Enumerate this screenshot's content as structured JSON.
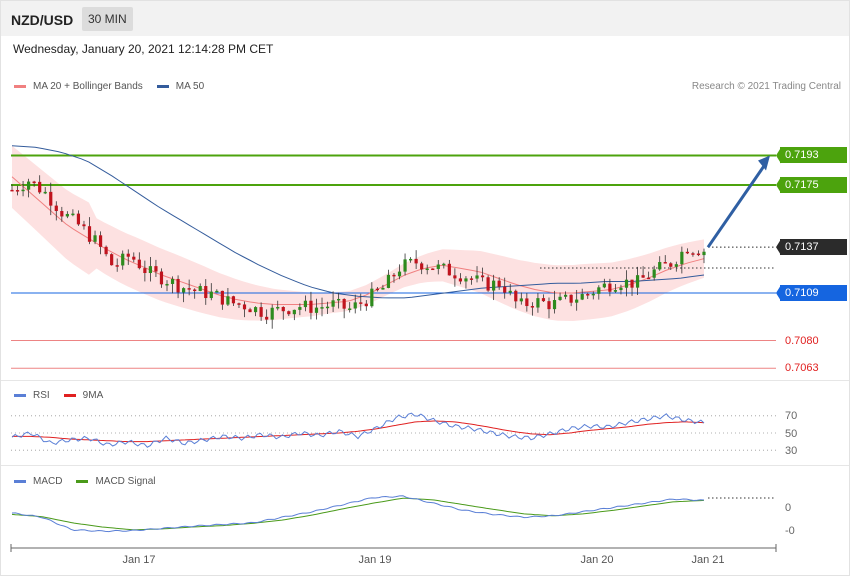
{
  "header": {
    "symbol": "NZD/USD",
    "timeframe": "30 MIN"
  },
  "timestamp": "Wednesday, January 20, 2021 12:14:28 PM CET",
  "credit": "Research © 2021 Trading Central",
  "legends": {
    "price": [
      {
        "label": "MA 20 + Bollinger Bands",
        "color": "#f08080"
      },
      {
        "label": "MA 50",
        "color": "#345c9c"
      }
    ],
    "rsi": [
      {
        "label": "RSI",
        "color": "#5a7fd6"
      },
      {
        "label": "9MA",
        "color": "#e02020"
      }
    ],
    "macd": [
      {
        "label": "MACD",
        "color": "#5a7fd6"
      },
      {
        "label": "MACD Signal",
        "color": "#4a9a1a"
      }
    ]
  },
  "colors": {
    "up_candle": "#2e8b1e",
    "down_candle": "#c0141e",
    "resistance": "#4ca30d",
    "support_blue": "#1565e0",
    "support_red": "#e02020",
    "current": "#2b2b2b"
  },
  "chart_data": [
    {
      "type": "candlestick",
      "panel": "price",
      "x_labels": [
        "Jan 17",
        "Jan 19",
        "Jan 20",
        "Jan 21"
      ],
      "levels": [
        {
          "label": "0.7193",
          "value": 0.7193,
          "kind": "resistance"
        },
        {
          "label": "0.7175",
          "value": 0.7175,
          "kind": "resistance"
        },
        {
          "label": "0.7137",
          "value": 0.7137,
          "kind": "current"
        },
        {
          "label": "0.7109",
          "value": 0.7109,
          "kind": "support"
        },
        {
          "label": "0.7080",
          "value": 0.708,
          "kind": "support"
        },
        {
          "label": "0.7063",
          "value": 0.7063,
          "kind": "support"
        }
      ],
      "price_path": [
        0.7172,
        0.7178,
        0.717,
        0.7158,
        0.715,
        0.714,
        0.7125,
        0.7132,
        0.7122,
        0.7118,
        0.7113,
        0.711,
        0.7108,
        0.7103,
        0.7101,
        0.7097,
        0.7099,
        0.7101,
        0.71,
        0.7102,
        0.7099,
        0.7105,
        0.7112,
        0.7125,
        0.7128,
        0.7125,
        0.7122,
        0.7119,
        0.7114,
        0.7115,
        0.7101,
        0.7104,
        0.7102,
        0.7105,
        0.7108,
        0.7113,
        0.7116,
        0.7115,
        0.7122,
        0.7127,
        0.7137,
        0.7135
      ],
      "ma20": [
        0.718,
        0.717,
        0.716,
        0.715,
        0.7143,
        0.7136,
        0.713,
        0.7125,
        0.712,
        0.7116,
        0.7112,
        0.7108,
        0.7105,
        0.7103,
        0.7102,
        0.7102,
        0.7102,
        0.7103,
        0.7104,
        0.7108,
        0.7114,
        0.712,
        0.7124,
        0.7126,
        0.7124,
        0.7122,
        0.7118,
        0.7114,
        0.7111,
        0.7109,
        0.7109,
        0.711,
        0.7111,
        0.7114,
        0.7118,
        0.7123,
        0.7127,
        0.713
      ],
      "ma50": [
        0.7199,
        0.7198,
        0.7195,
        0.719,
        0.7181,
        0.7171,
        0.7161,
        0.7152,
        0.7143,
        0.7134,
        0.7126,
        0.7119,
        0.7113,
        0.7109,
        0.7107,
        0.7106,
        0.7106,
        0.7108,
        0.711,
        0.7112,
        0.7113,
        0.7114,
        0.7115,
        0.7115,
        0.7116,
        0.7116,
        0.7117,
        0.7118,
        0.712
      ],
      "arrow_target": 0.7193
    },
    {
      "type": "line",
      "panel": "rsi",
      "ticks": [
        "70",
        "50",
        "30"
      ],
      "series": [
        {
          "name": "RSI",
          "values": [
            45,
            50,
            38,
            42,
            44,
            36,
            40,
            35,
            44,
            38,
            42,
            46,
            44,
            48,
            45,
            50,
            47,
            52,
            46,
            56,
            68,
            72,
            64,
            58,
            55,
            50,
            46,
            44,
            49,
            55,
            58,
            57,
            62,
            66,
            70,
            65,
            62
          ]
        },
        {
          "name": "9MA",
          "values": [
            46,
            46,
            45,
            43,
            42,
            41,
            40,
            40,
            41,
            42,
            43,
            44,
            45,
            46,
            47,
            48,
            49,
            50,
            52,
            55,
            59,
            63,
            64,
            63,
            60,
            56,
            52,
            49,
            48,
            50,
            53,
            55,
            57,
            60,
            62,
            63,
            62
          ]
        }
      ]
    },
    {
      "type": "line",
      "panel": "macd",
      "ticks": [
        "0",
        "-0"
      ],
      "series": [
        {
          "name": "MACD",
          "values": [
            0.00025,
            0.0001,
            -0.00035,
            -0.0004,
            -0.00038,
            -0.0003,
            -0.00022,
            -0.00016,
            -0.0001,
            0.0001,
            0.0003,
            0.00055,
            0.0008,
            0.00085,
            0.0006,
            0.00035,
            0.0002,
            0.0001,
            0.00015,
            0.0003,
            0.00045,
            0.0006,
            0.00075,
            0.0007
          ]
        },
        {
          "name": "MACD Signal",
          "values": [
            0.0002,
            0.00012,
            -0.0001,
            -0.00025,
            -0.00035,
            -0.00032,
            -0.00025,
            -0.0002,
            -0.00012,
            0.0,
            0.00018,
            0.0004,
            0.0006,
            0.00078,
            0.00072,
            0.00055,
            0.00038,
            0.00022,
            0.00015,
            0.00022,
            0.00035,
            0.0005,
            0.00065,
            0.0007
          ]
        }
      ]
    }
  ]
}
